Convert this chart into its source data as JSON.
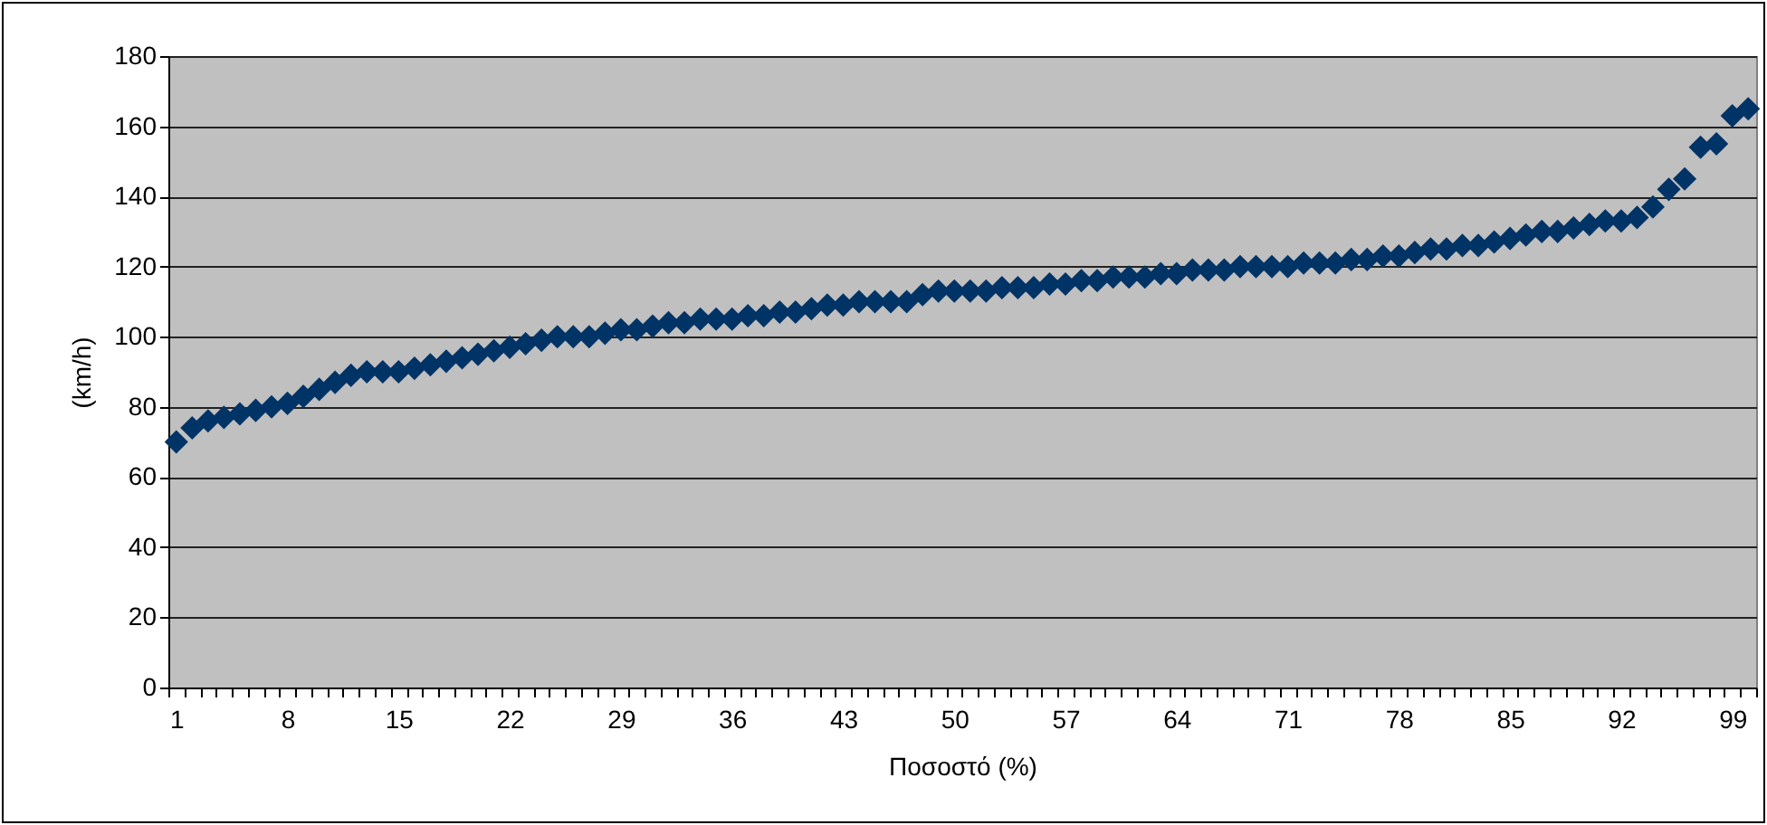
{
  "chart_data": {
    "type": "scatter",
    "xlabel": "Ποσοστό (%)",
    "ylabel": "(km/h)",
    "categories": [
      "1",
      null,
      null,
      null,
      null,
      null,
      null,
      "8",
      null,
      null,
      null,
      null,
      null,
      null,
      "15",
      null,
      null,
      null,
      null,
      null,
      null,
      "22",
      null,
      null,
      null,
      null,
      null,
      null,
      "29",
      null,
      null,
      null,
      null,
      null,
      null,
      "36",
      null,
      null,
      null,
      null,
      null,
      null,
      "43",
      null,
      null,
      null,
      null,
      null,
      null,
      "50",
      null,
      null,
      null,
      null,
      null,
      null,
      "57",
      null,
      null,
      null,
      null,
      null,
      null,
      "64",
      null,
      null,
      null,
      null,
      null,
      null,
      "71",
      null,
      null,
      null,
      null,
      null,
      null,
      "78",
      null,
      null,
      null,
      null,
      null,
      null,
      "85",
      null,
      null,
      null,
      null,
      null,
      null,
      "92",
      null,
      null,
      null,
      null,
      null,
      null,
      "99",
      null
    ],
    "series": [
      {
        "color": "#003366",
        "values": [
          70,
          74,
          76,
          77,
          78,
          79,
          80,
          81,
          83,
          85,
          87,
          89,
          90,
          90,
          90,
          91,
          92,
          93,
          94,
          95,
          96,
          97,
          98,
          99,
          100,
          100,
          100,
          101,
          102,
          102,
          103,
          104,
          104,
          105,
          105,
          105,
          106,
          106,
          107,
          107,
          108,
          109,
          109,
          110,
          110,
          110,
          110,
          112,
          113,
          113,
          113,
          113,
          114,
          114,
          114,
          115,
          115,
          116,
          116,
          117,
          117,
          117,
          118,
          118,
          119,
          119,
          119,
          120,
          120,
          120,
          120,
          121,
          121,
          121,
          122,
          122,
          123,
          123,
          124,
          125,
          125,
          126,
          126,
          127,
          128,
          129,
          130,
          130,
          131,
          132,
          133,
          133,
          134,
          137,
          142,
          145,
          154,
          155,
          163,
          165
        ]
      }
    ],
    "ylim": [
      0,
      180
    ],
    "yticks": [
      0,
      20,
      40,
      60,
      80,
      100,
      120,
      140,
      160,
      180
    ],
    "grid": "y",
    "marker": "diamond"
  }
}
